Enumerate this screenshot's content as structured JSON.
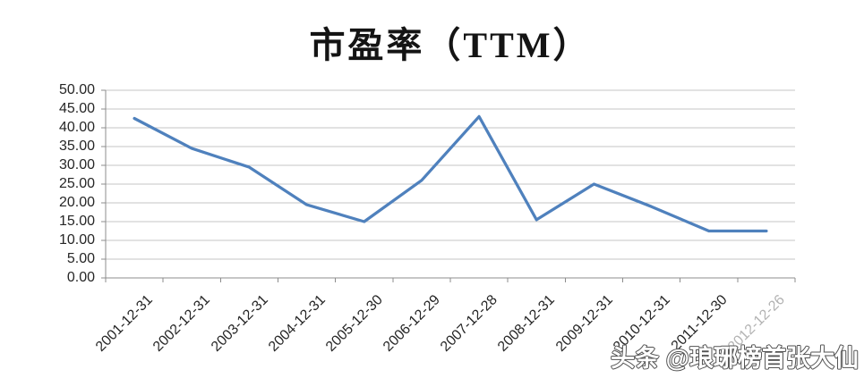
{
  "chart_data": {
    "type": "line",
    "title": "市盈率（TTM）",
    "categories": [
      "2001-12-31",
      "2002-12-31",
      "2003-12-31",
      "2004-12-31",
      "2005-12-30",
      "2006-12-29",
      "2007-12-28",
      "2008-12-31",
      "2009-12-31",
      "2010-12-31",
      "2011-12-30",
      "2012-12-26"
    ],
    "series": [
      {
        "values": [
          42.5,
          34.5,
          29.5,
          19.5,
          15.0,
          26.0,
          43.0,
          15.5,
          25.0,
          19.0,
          12.5,
          12.5
        ]
      }
    ],
    "ylim": [
      0,
      50
    ],
    "ytick_step": 5,
    "ytick_labels_top_to_bottom": [
      "50.00",
      "45.00",
      "40.00",
      "35.00",
      "30.00",
      "25.00",
      "20.00",
      "15.00",
      "10.00",
      "5.00",
      "0.00"
    ],
    "grid": true,
    "legend": false,
    "xlabel": "",
    "ylabel": "",
    "muted_last_category": true,
    "line_color": "#4f81bd"
  },
  "watermark": {
    "text": "头条 @琅琊榜首张大仙"
  },
  "colors": {
    "line": "#4f81bd",
    "grid": "#c6c6c6",
    "axis": "#8c8c8c",
    "label": "#262626",
    "muted_label": "#b3b3b3",
    "title": "#141414",
    "watermark_fill": "#ffffff",
    "watermark_stroke": "#525252"
  }
}
